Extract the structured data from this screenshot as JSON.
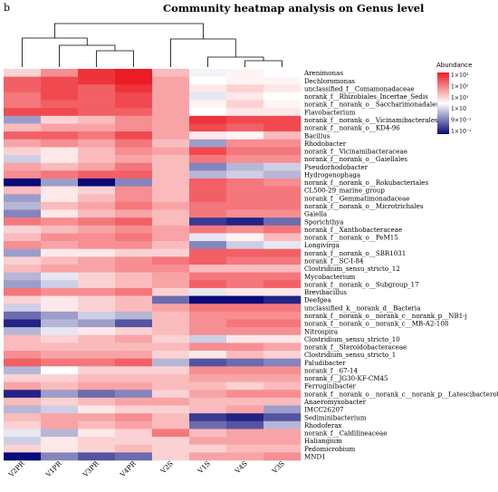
{
  "panel_letter": "b",
  "colors": {
    "high": "#ed1c24",
    "mid": "#ffffff",
    "low": "#0a0a78"
  },
  "chart_data": {
    "type": "heatmap",
    "title": "Community heatmap analysis on Genus level",
    "legend": {
      "title": "Abundance",
      "position": "top-right",
      "ticks": [
        "1×10³",
        "1×10²",
        "1×10¹",
        "1×10",
        "9×10⁻¹",
        "1×10⁻¹"
      ]
    },
    "columns": [
      "V2PR",
      "V1PR",
      "V3PR",
      "V4PR",
      "V2S",
      "V1S",
      "V4S",
      "V3S"
    ],
    "rows": [
      "Arenimonas",
      "Dechloromonas",
      "unclassified_f__Comamonadaceae",
      "norank_f__Rhizobiales_Incertae_Sedis",
      "norank_f__norank_o__Saccharimonadales",
      "Flavobacterium",
      "norank_f__norank_o__Vicinamibacterales",
      "norank_f__norank_o__KD4-96",
      "Bacillus",
      "Rhodobacter",
      "norank_f__Vicinamibacteraceae",
      "norank_f__norank_o__Gaiellales",
      "Pseudorhodobacter",
      "Hydrogenophaga",
      "norank_f__norank_o__Rokubacteriales",
      "CL500-29_marine_group",
      "norank_f__Gemmatimonadaceae",
      "norank_f__norank_o__Microtrichales",
      "Gaiella",
      "Sporichthya",
      "norank_f__Xanthobacteraceae",
      "norank_f__norank_o__PeM15",
      "Longivirga",
      "norank_f__norank_o__SBR1031",
      "norank_f__SC-I-84",
      "Clostridium_sensu_stricto_12",
      "Mycobacterium",
      "norank_f__norank_o__Subgroup_17",
      "Brevibacillus",
      "Deefgea",
      "unclassified_k__norank_d__Bacteria",
      "norank_f__norank_o__norank_c__norank_p__NB1-j",
      "norank_f__norank_o__norank_c__MB-A2-108",
      "Nitrospira",
      "Clostridium_sensu_stricto_10",
      "norank_f__Steroidobacteraceae",
      "Clostridium_sensu_stricto_1",
      "Paludibacter",
      "norank_f__67-14",
      "norank_f__JG30-KF-CM45",
      "Ferruginibacter",
      "norank_f__norank_o__norank_c__norank_p__Latescibacterota",
      "Anaeromyxobacter",
      "IMCC26207",
      "Sediminibacterium",
      "Rhodoferax",
      "norank_f__Caldilineaceae",
      "Haliangium",
      "Pedomicrobium",
      "MND1"
    ],
    "values": [
      [
        0.2,
        0.5,
        0.9,
        1.0,
        0.3,
        -0.05,
        0.05,
        0.0
      ],
      [
        0.7,
        0.8,
        0.9,
        1.0,
        0.4,
        0.0,
        0.05,
        0.05
      ],
      [
        0.7,
        0.8,
        0.7,
        0.9,
        0.4,
        0.1,
        0.2,
        0.1
      ],
      [
        0.6,
        0.8,
        0.7,
        0.8,
        0.4,
        -0.1,
        0.1,
        0.0
      ],
      [
        0.6,
        0.7,
        0.7,
        0.8,
        0.4,
        0.05,
        0.2,
        0.05
      ],
      [
        0.8,
        0.8,
        0.7,
        0.7,
        0.4,
        0.0,
        0.1,
        0.1
      ],
      [
        -0.4,
        0.2,
        0.3,
        0.5,
        0.4,
        0.9,
        0.8,
        0.8
      ],
      [
        0.3,
        0.4,
        0.4,
        0.5,
        0.4,
        0.8,
        0.7,
        0.8
      ],
      [
        0.7,
        0.7,
        0.6,
        0.8,
        0.4,
        0.1,
        0.05,
        0.3
      ],
      [
        0.4,
        0.5,
        0.4,
        0.6,
        0.3,
        -0.4,
        0.5,
        0.5
      ],
      [
        0.2,
        0.1,
        0.3,
        0.5,
        0.4,
        0.8,
        0.6,
        0.6
      ],
      [
        -0.2,
        0.1,
        0.3,
        0.4,
        0.3,
        0.6,
        0.5,
        0.5
      ],
      [
        0.4,
        0.3,
        0.4,
        0.6,
        0.3,
        -0.5,
        -0.3,
        -0.2
      ],
      [
        0.5,
        0.6,
        0.7,
        0.7,
        0.3,
        -0.3,
        -0.2,
        -0.3
      ],
      [
        -1.0,
        -0.4,
        -1.0,
        -0.5,
        0.3,
        0.7,
        0.6,
        0.5
      ],
      [
        0.3,
        0.1,
        0.2,
        0.5,
        0.3,
        0.7,
        0.6,
        0.6
      ],
      [
        -0.4,
        0.1,
        0.3,
        0.5,
        0.3,
        0.7,
        0.6,
        0.6
      ],
      [
        -0.3,
        0.3,
        0.4,
        0.6,
        0.4,
        0.6,
        0.6,
        0.6
      ],
      [
        -0.5,
        0.1,
        0.3,
        0.4,
        0.3,
        0.6,
        0.5,
        0.5
      ],
      [
        0.6,
        0.5,
        0.6,
        0.7,
        0.3,
        -0.8,
        -0.9,
        -0.6
      ],
      [
        0.2,
        0.3,
        0.4,
        0.5,
        0.4,
        0.6,
        0.5,
        0.6
      ],
      [
        0.3,
        0.5,
        0.5,
        0.6,
        0.4,
        -0.1,
        0.05,
        0.3
      ],
      [
        0.5,
        0.4,
        0.5,
        0.5,
        0.3,
        -0.5,
        -0.2,
        -0.1
      ],
      [
        -0.4,
        0.1,
        0.1,
        0.2,
        0.2,
        0.7,
        0.7,
        0.7
      ],
      [
        0.2,
        0.3,
        0.4,
        0.5,
        0.6,
        0.7,
        0.6,
        0.6
      ],
      [
        0.3,
        0.4,
        0.4,
        0.5,
        0.5,
        0.3,
        0.3,
        0.3
      ],
      [
        -0.3,
        -0.1,
        0.2,
        0.3,
        0.4,
        0.6,
        0.6,
        0.6
      ],
      [
        -0.4,
        -0.2,
        0.2,
        0.3,
        0.4,
        0.7,
        0.6,
        0.7
      ],
      [
        0.6,
        0.5,
        0.5,
        0.6,
        0.2,
        -0.1,
        0.1,
        0.1
      ],
      [
        0.2,
        0.1,
        0.2,
        0.3,
        -0.6,
        -1.0,
        -1.0,
        -0.9
      ],
      [
        -0.2,
        0.1,
        0.2,
        0.3,
        0.4,
        0.6,
        0.6,
        0.6
      ],
      [
        -0.6,
        -0.4,
        -0.2,
        -0.3,
        0.3,
        0.5,
        0.5,
        0.5
      ],
      [
        -0.9,
        -0.3,
        -0.4,
        -0.7,
        0.3,
        0.5,
        0.6,
        0.6
      ],
      [
        -0.3,
        -0.1,
        0.1,
        0.2,
        0.3,
        0.5,
        0.5,
        0.5
      ],
      [
        0.3,
        0.2,
        0.3,
        0.4,
        0.2,
        -0.2,
        0.1,
        0.1
      ],
      [
        0.3,
        0.3,
        0.3,
        0.3,
        0.3,
        0.5,
        0.5,
        0.4
      ],
      [
        0.5,
        0.4,
        0.4,
        0.4,
        0.2,
        0.1,
        0.3,
        0.2
      ],
      [
        0.7,
        0.6,
        0.6,
        0.7,
        -0.3,
        -0.7,
        -0.6,
        -0.5
      ],
      [
        -0.3,
        0.0,
        0.2,
        0.2,
        0.2,
        0.5,
        0.5,
        0.5
      ],
      [
        0.2,
        0.2,
        0.3,
        0.3,
        0.3,
        0.4,
        0.4,
        0.4
      ],
      [
        0.4,
        0.3,
        0.4,
        0.4,
        0.3,
        0.3,
        0.2,
        0.3
      ],
      [
        -0.9,
        -0.4,
        -0.6,
        -0.5,
        0.2,
        0.4,
        0.5,
        0.5
      ],
      [
        0.3,
        0.2,
        0.3,
        0.4,
        0.4,
        0.3,
        0.3,
        0.3
      ],
      [
        -0.3,
        -0.2,
        0.1,
        0.2,
        0.2,
        0.3,
        0.4,
        -0.4
      ],
      [
        0.3,
        0.4,
        0.4,
        0.5,
        0.3,
        -0.8,
        -0.9,
        -0.7
      ],
      [
        0.2,
        0.4,
        0.3,
        0.4,
        0.3,
        -0.6,
        -0.7,
        -0.3
      ],
      [
        -0.1,
        -0.3,
        0.1,
        0.2,
        0.6,
        0.3,
        0.4,
        0.4
      ],
      [
        -0.2,
        0.1,
        0.2,
        0.2,
        0.2,
        0.4,
        0.4,
        0.4
      ],
      [
        0.2,
        0.1,
        0.2,
        0.3,
        0.2,
        0.2,
        0.3,
        0.3
      ],
      [
        -1.0,
        -0.5,
        -0.7,
        -0.6,
        0.2,
        0.4,
        0.4,
        0.5
      ]
    ]
  }
}
